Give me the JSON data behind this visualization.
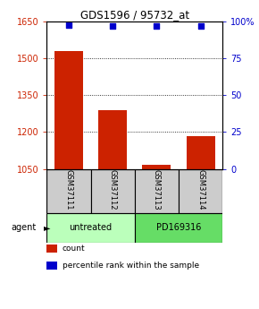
{
  "title": "GDS1596 / 95732_at",
  "categories": [
    "GSM37111",
    "GSM37112",
    "GSM37113",
    "GSM37114"
  ],
  "bar_values": [
    1530,
    1290,
    1065,
    1185
  ],
  "percentile_values": [
    97.5,
    97.0,
    96.8,
    96.8
  ],
  "ylim_left": [
    1050,
    1650
  ],
  "ylim_right": [
    0,
    100
  ],
  "yticks_left": [
    1050,
    1200,
    1350,
    1500,
    1650
  ],
  "yticks_right": [
    0,
    25,
    50,
    75,
    100
  ],
  "ytick_labels_right": [
    "0",
    "25",
    "50",
    "75",
    "100%"
  ],
  "bar_color": "#cc2200",
  "dot_color": "#0000cc",
  "agent_labels": [
    "untreated",
    "PD169316"
  ],
  "agent_light_color": "#bbffbb",
  "agent_dark_color": "#66dd66",
  "sample_box_color": "#cccccc",
  "bar_width": 0.65,
  "figsize": [
    2.9,
    3.45
  ],
  "dpi": 100
}
